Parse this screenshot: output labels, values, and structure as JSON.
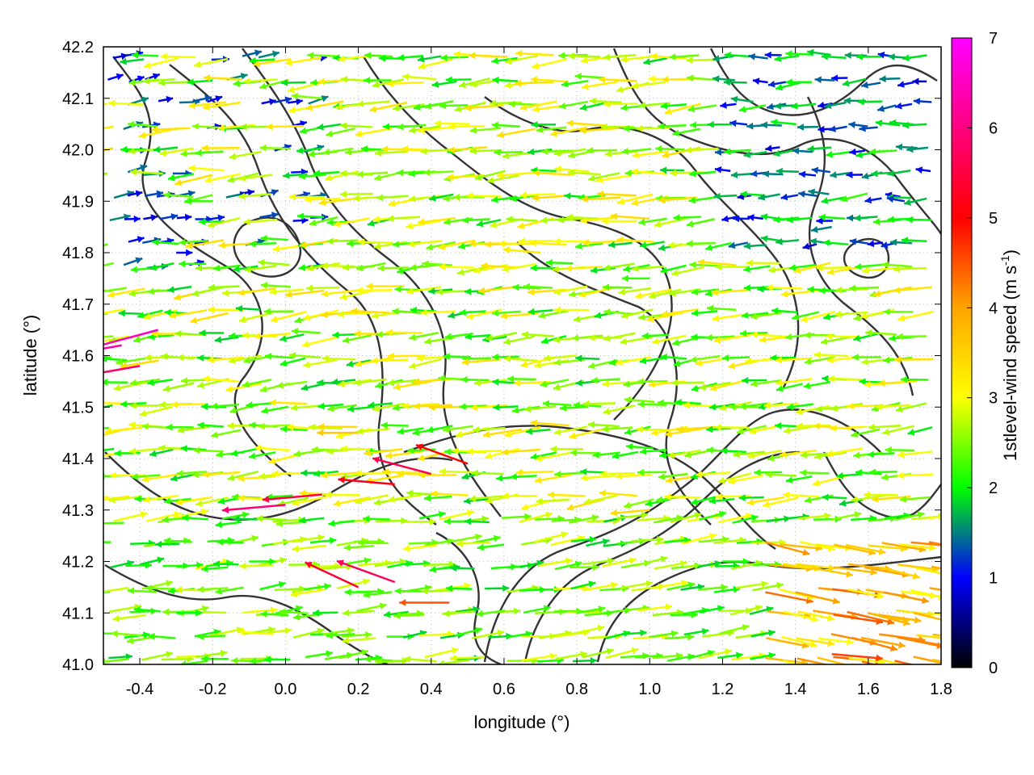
{
  "chart_data": {
    "type": "vector-field",
    "xlabel": "longitude (°)",
    "ylabel": "latitude (°)",
    "xlim": [
      -0.5,
      1.8
    ],
    "ylim": [
      41.0,
      42.2
    ],
    "xticks": [
      -0.4,
      -0.2,
      0.0,
      0.2,
      0.4,
      0.6,
      0.8,
      1.0,
      1.2,
      1.4,
      1.6,
      1.8
    ],
    "yticks": [
      41.0,
      41.1,
      41.2,
      41.3,
      41.4,
      41.5,
      41.6,
      41.7,
      41.8,
      41.9,
      42.0,
      42.1,
      42.2
    ],
    "xtick_labels": [
      "-0.4",
      "-0.2",
      "0.0",
      "0.2",
      "0.4",
      "0.6",
      "0.8",
      "1.0",
      "1.2",
      "1.4",
      "1.6",
      "1.8"
    ],
    "ytick_labels": [
      "41.0",
      "41.1",
      "41.2",
      "41.3",
      "41.4",
      "41.5",
      "41.6",
      "41.7",
      "41.8",
      "41.9",
      "42.0",
      "42.1",
      "42.2"
    ],
    "grid": true,
    "colorbar": {
      "label": "1stlevel-wind speed (m s",
      "label_superscript": "-1",
      "label_suffix": ")",
      "range": [
        0,
        7
      ],
      "ticks": [
        "0",
        "1",
        "2",
        "3",
        "4",
        "5",
        "6",
        "7"
      ],
      "colors": [
        "#000000",
        "#0000ff",
        "#00ff00",
        "#ffff00",
        "#ffa500",
        "#ff0000",
        "#ff00ff"
      ],
      "stops": [
        0,
        1,
        2,
        3,
        4,
        5,
        7
      ]
    },
    "vectors": [
      {
        "lon": -0.45,
        "lat": 41.62,
        "speed": 6.3,
        "dir_deg": 190
      },
      {
        "lon": -0.4,
        "lat": 41.58,
        "speed": 5.8,
        "dir_deg": 190
      },
      {
        "lon": -0.35,
        "lat": 41.65,
        "speed": 6.6,
        "dir_deg": 195
      },
      {
        "lon": 0.1,
        "lat": 41.33,
        "speed": 5.5,
        "dir_deg": 185
      },
      {
        "lon": 0.0,
        "lat": 41.31,
        "speed": 5.9,
        "dir_deg": 185
      },
      {
        "lon": 0.3,
        "lat": 41.35,
        "speed": 5.2,
        "dir_deg": 175
      },
      {
        "lon": 0.4,
        "lat": 41.37,
        "speed": 5.6,
        "dir_deg": 165
      },
      {
        "lon": 0.5,
        "lat": 41.39,
        "speed": 5.0,
        "dir_deg": 160
      },
      {
        "lon": 0.2,
        "lat": 41.15,
        "speed": 5.4,
        "dir_deg": 155
      },
      {
        "lon": 0.3,
        "lat": 41.16,
        "speed": 5.7,
        "dir_deg": 160
      },
      {
        "lon": 0.45,
        "lat": 41.12,
        "speed": 4.5,
        "dir_deg": 180
      },
      {
        "lon": 1.6,
        "lat": 41.1,
        "speed": 3.8,
        "dir_deg": 345
      },
      {
        "lon": 1.7,
        "lat": 41.05,
        "speed": 4.2,
        "dir_deg": 350
      },
      {
        "lon": 1.5,
        "lat": 41.02,
        "speed": 4.6,
        "dir_deg": 355
      },
      {
        "lon": 1.3,
        "lat": 41.5,
        "speed": 2.4,
        "dir_deg": 180
      },
      {
        "lon": 0.8,
        "lat": 41.6,
        "speed": 2.8,
        "dir_deg": 185
      },
      {
        "lon": 0.7,
        "lat": 41.8,
        "speed": 3.2,
        "dir_deg": 175
      },
      {
        "lon": 1.0,
        "lat": 41.75,
        "speed": 2.2,
        "dir_deg": 180
      },
      {
        "lon": 1.5,
        "lat": 41.85,
        "speed": 1.5,
        "dir_deg": 190
      },
      {
        "lon": 1.7,
        "lat": 41.9,
        "speed": 1.2,
        "dir_deg": 170
      },
      {
        "lon": -0.3,
        "lat": 41.8,
        "speed": 1.0,
        "dir_deg": 0
      },
      {
        "lon": -0.2,
        "lat": 41.9,
        "speed": 2.2,
        "dir_deg": 180
      },
      {
        "lon": 0.1,
        "lat": 42.1,
        "speed": 2.5,
        "dir_deg": 175
      },
      {
        "lon": 0.4,
        "lat": 41.55,
        "speed": 3.3,
        "dir_deg": 190
      },
      {
        "lon": 0.2,
        "lat": 41.45,
        "speed": 3.6,
        "dir_deg": 180
      },
      {
        "lon": -0.1,
        "lat": 41.2,
        "speed": 2.1,
        "dir_deg": 0
      },
      {
        "lon": -0.3,
        "lat": 41.1,
        "speed": 2.0,
        "dir_deg": 0
      },
      {
        "lon": 0.8,
        "lat": 41.1,
        "speed": 2.3,
        "dir_deg": 10
      },
      {
        "lon": 1.2,
        "lat": 41.2,
        "speed": 2.1,
        "dir_deg": 0
      },
      {
        "lon": 1.0,
        "lat": 41.3,
        "speed": 3.4,
        "dir_deg": 185
      }
    ]
  }
}
